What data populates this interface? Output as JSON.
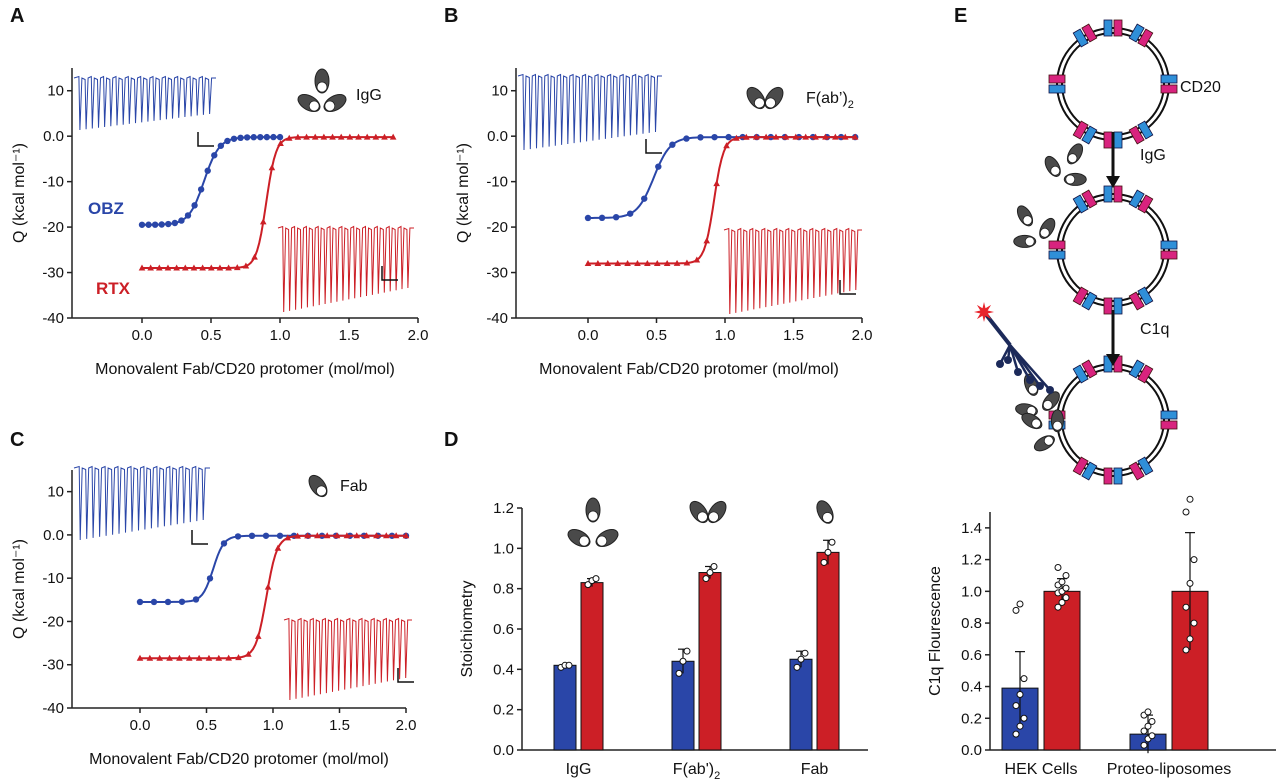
{
  "colors": {
    "obz": "#2a46a8",
    "rtx": "#cc1f26",
    "axis": "#222222",
    "cd20_blue": "#2f8fd8",
    "cd20_pink": "#d8237e",
    "c1q": "#1c2a5a"
  },
  "panels": {
    "A": {
      "label": "A",
      "antibody": "IgG",
      "obz_label": "OBZ",
      "rtx_label": "RTX"
    },
    "B": {
      "label": "B",
      "antibody": "F(ab’)",
      "antibody_sub": "2"
    },
    "C": {
      "label": "C",
      "antibody": "Fab"
    },
    "D": {
      "label": "D"
    },
    "E": {
      "label": "E",
      "cd20": "CD20",
      "step1": "IgG",
      "step2": "C1q"
    }
  },
  "chart_data": [
    {
      "panel": "A",
      "type": "line",
      "xlabel": "Monovalent Fab/CD20 protomer (mol/mol)",
      "ylabel": "Q (kcal mol⁻¹)",
      "xlim": [
        -0.5,
        2.0
      ],
      "ylim": [
        -40,
        15
      ],
      "xticks": [
        "0.0",
        "0.5",
        "1.0",
        "1.5",
        "2.0"
      ],
      "yticks": [
        "10",
        "0.0",
        "-10",
        "-20",
        "-30",
        "-40"
      ],
      "series": [
        {
          "name": "OBZ",
          "fit": {
            "top": -0.2,
            "bottom": -19.5,
            "x0": 0.45,
            "k": 0.055
          },
          "x_start": 0.0,
          "x_end": 1.0,
          "n_points": 22
        },
        {
          "name": "RTX",
          "fit": {
            "top": -0.2,
            "bottom": -29,
            "x0": 0.9,
            "k": 0.035
          },
          "x_start": 0.0,
          "x_end": 1.82,
          "n_points": 30
        }
      ]
    },
    {
      "panel": "B",
      "type": "line",
      "xlabel": "Monovalent Fab/CD20 protomer (mol/mol)",
      "ylabel": "Q (kcal mol⁻¹)",
      "xlim": [
        -0.5,
        2.0
      ],
      "ylim": [
        -40,
        15
      ],
      "xticks": [
        "0.0",
        "0.5",
        "1.0",
        "1.5",
        "2.0"
      ],
      "yticks": [
        "10",
        "0.0",
        "-10",
        "-20",
        "-30",
        "-40"
      ],
      "series": [
        {
          "fit": {
            "top": -0.2,
            "bottom": -18,
            "x0": 0.48,
            "k": 0.06
          },
          "x_start": 0.0,
          "x_end": 1.95,
          "n_points": 20
        },
        {
          "fit": {
            "top": -0.2,
            "bottom": -28,
            "x0": 0.92,
            "k": 0.035
          },
          "x_start": 0.0,
          "x_end": 1.95,
          "n_points": 28
        }
      ]
    },
    {
      "panel": "C",
      "type": "line",
      "xlabel": "Monovalent Fab/CD20 protomer (mol/mol)",
      "ylabel": "Q (kcal mol⁻¹)",
      "xlim": [
        -0.5,
        2.0
      ],
      "ylim": [
        -40,
        15
      ],
      "xticks": [
        "0.0",
        "0.5",
        "1.0",
        "1.5",
        "2.0"
      ],
      "yticks": [
        "10",
        "0.0",
        "-10",
        "-20",
        "-30",
        "-40"
      ],
      "series": [
        {
          "fit": {
            "top": -0.2,
            "bottom": -15.5,
            "x0": 0.55,
            "k": 0.04
          },
          "x_start": 0.0,
          "x_end": 2.0,
          "n_points": 20
        },
        {
          "fit": {
            "top": -0.2,
            "bottom": -28.5,
            "x0": 0.95,
            "k": 0.04
          },
          "x_start": 0.0,
          "x_end": 2.0,
          "n_points": 28
        }
      ]
    },
    {
      "panel": "D",
      "type": "bar",
      "ylabel": "Stoichiometry",
      "ylim": [
        0,
        1.2
      ],
      "yticks": [
        "0.0",
        "0.2",
        "0.4",
        "0.6",
        "0.8",
        "1.0",
        "1.2"
      ],
      "categories": [
        "IgG",
        "F(ab')",
        "Fab"
      ],
      "category_sub": [
        "",
        "2",
        ""
      ],
      "series": [
        {
          "values": [
            0.42,
            0.44,
            0.45
          ],
          "errors": [
            0.0,
            0.06,
            0.04
          ],
          "points": [
            [
              0.41,
              0.42,
              0.42
            ],
            [
              0.38,
              0.44,
              0.49
            ],
            [
              0.41,
              0.45,
              0.48
            ]
          ]
        },
        {
          "values": [
            0.83,
            0.88,
            0.98
          ],
          "errors": [
            0.02,
            0.03,
            0.06
          ],
          "points": [
            [
              0.82,
              0.84,
              0.85
            ],
            [
              0.85,
              0.88,
              0.91
            ],
            [
              0.93,
              0.98,
              1.03
            ]
          ]
        }
      ]
    },
    {
      "panel": "E",
      "type": "bar",
      "ylabel": "C1q Flourescence",
      "ylim": [
        0,
        1.5
      ],
      "yticks": [
        "0.0",
        "0.2",
        "0.4",
        "0.6",
        "0.8",
        "1.0",
        "1.2",
        "1.4"
      ],
      "categories": [
        "HEK Cells",
        "Proteo-liposomes"
      ],
      "series": [
        {
          "values": [
            0.39,
            0.1
          ],
          "errors": [
            0.23,
            0.12
          ],
          "points": [
            [
              0.1,
              0.15,
              0.2,
              0.28,
              0.35,
              0.45,
              0.88,
              0.92
            ],
            [
              0.03,
              0.07,
              0.09,
              0.12,
              0.15,
              0.18,
              0.22,
              0.24
            ]
          ]
        },
        {
          "values": [
            1.0,
            1.0
          ],
          "errors": [
            0.08,
            0.37
          ],
          "points": [
            [
              0.9,
              0.93,
              0.96,
              0.99,
              1.0,
              1.02,
              1.04,
              1.06,
              1.1,
              1.15
            ],
            [
              0.63,
              0.7,
              0.8,
              0.9,
              1.05,
              1.2,
              1.5,
              1.58
            ]
          ]
        }
      ]
    }
  ]
}
